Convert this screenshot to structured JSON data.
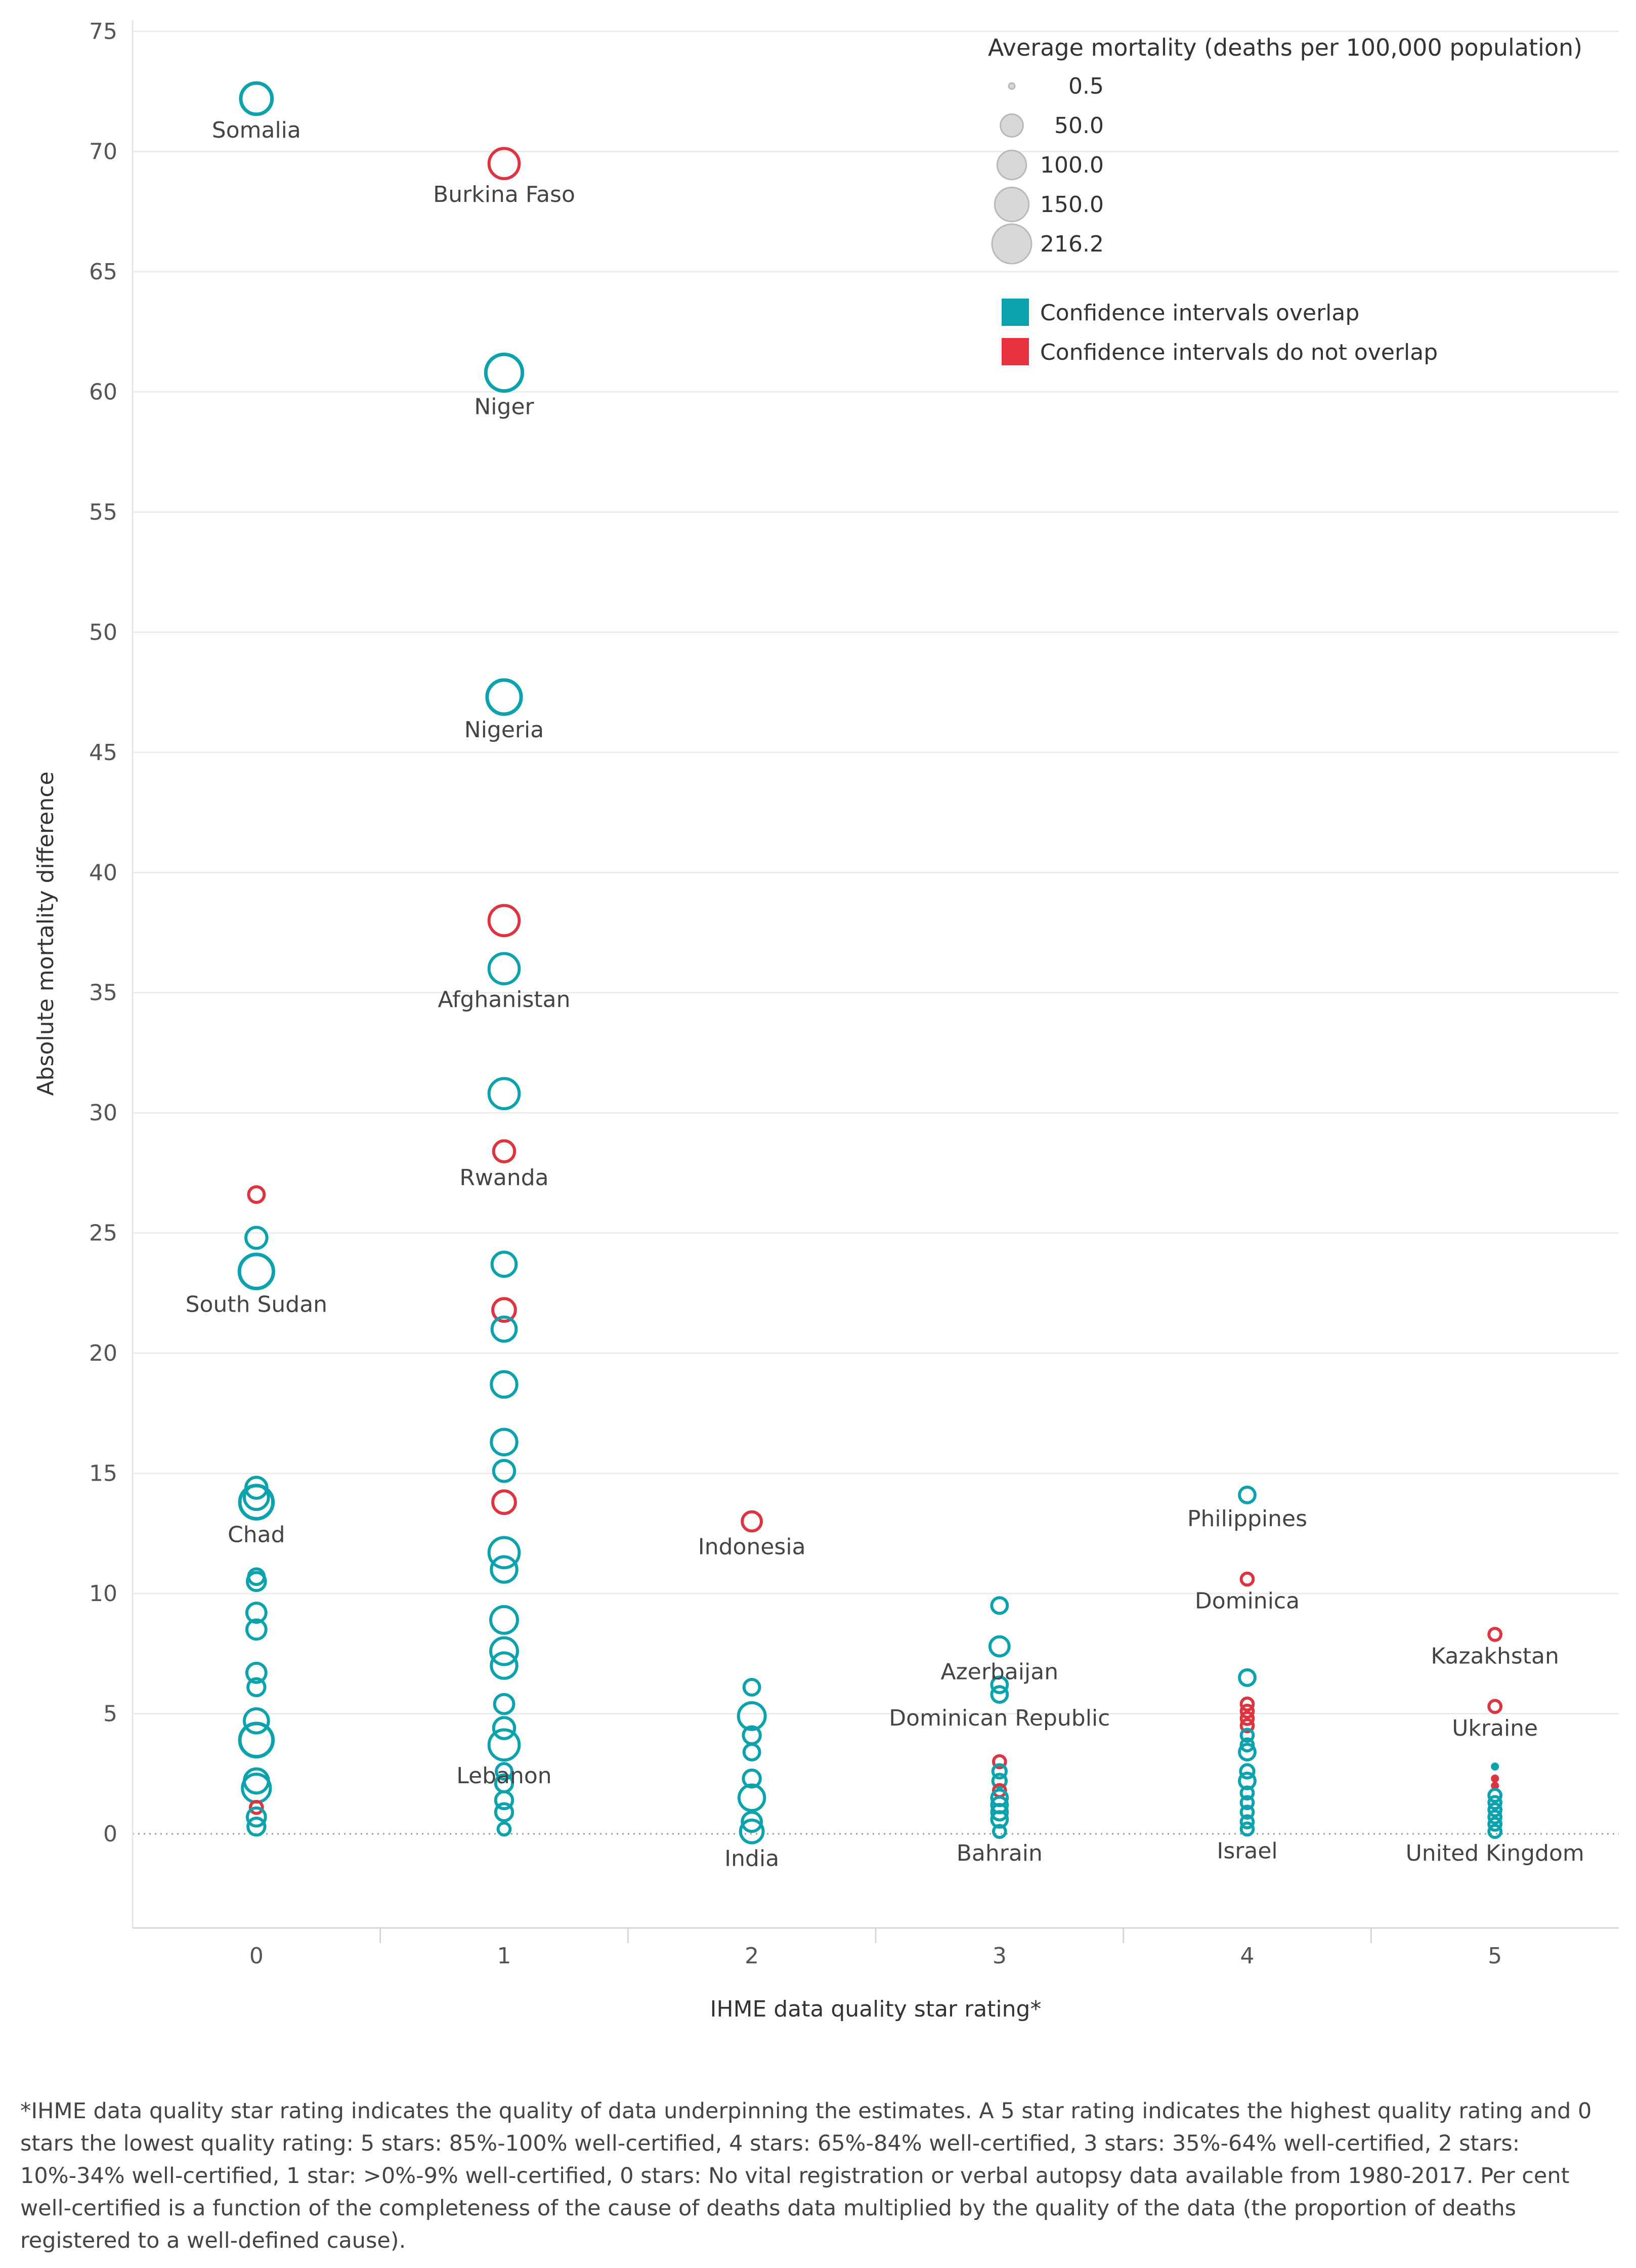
{
  "chart_data": {
    "type": "scatter",
    "title": "",
    "xlabel": "IHME data quality star rating*",
    "ylabel": "Absolute mortality difference",
    "x_categories": [
      "0",
      "1",
      "2",
      "3",
      "4",
      "5"
    ],
    "ylim": [
      -4,
      75
    ],
    "y_ticks": [
      "0",
      "5",
      "10",
      "15",
      "20",
      "25",
      "30",
      "35",
      "40",
      "45",
      "50",
      "55",
      "60",
      "65",
      "70",
      "75"
    ],
    "grid": true,
    "legend": {
      "size_title": "Average mortality (deaths per 100,000 population)",
      "size_entries": [
        {
          "label": "0.5",
          "value": 0.5
        },
        {
          "label": "50.0",
          "value": 50
        },
        {
          "label": "100.0",
          "value": 100
        },
        {
          "label": "150.0",
          "value": 150
        },
        {
          "label": "216.2",
          "value": 216.2
        }
      ],
      "color_entries": [
        {
          "label": "Confidence intervals overlap",
          "color": "#0aa3ad"
        },
        {
          "label": "Confidence intervals do not overlap",
          "color": "#e8303f"
        }
      ],
      "placement": "top-right"
    },
    "colors": {
      "overlap": "#0aa3ad",
      "no_overlap": "#e03340"
    },
    "points": [
      {
        "x": 0,
        "y": 72.2,
        "size": 120,
        "group": "overlap",
        "label": "Somalia"
      },
      {
        "x": 0,
        "y": 26.6,
        "size": 15,
        "group": "no_overlap"
      },
      {
        "x": 0,
        "y": 24.8,
        "size": 40,
        "group": "overlap"
      },
      {
        "x": 0,
        "y": 23.4,
        "size": 150,
        "group": "overlap",
        "label": "South Sudan"
      },
      {
        "x": 0,
        "y": 14.4,
        "size": 40,
        "group": "overlap"
      },
      {
        "x": 0,
        "y": 14.0,
        "size": 60,
        "group": "overlap"
      },
      {
        "x": 0,
        "y": 13.8,
        "size": 140,
        "group": "overlap",
        "label": "Chad"
      },
      {
        "x": 0,
        "y": 10.7,
        "size": 15,
        "group": "overlap"
      },
      {
        "x": 0,
        "y": 10.5,
        "size": 25,
        "group": "overlap"
      },
      {
        "x": 0,
        "y": 9.2,
        "size": 30,
        "group": "overlap"
      },
      {
        "x": 0,
        "y": 8.5,
        "size": 30,
        "group": "overlap"
      },
      {
        "x": 0,
        "y": 6.7,
        "size": 30,
        "group": "overlap"
      },
      {
        "x": 0,
        "y": 6.1,
        "size": 20,
        "group": "overlap"
      },
      {
        "x": 0,
        "y": 4.7,
        "size": 60,
        "group": "overlap"
      },
      {
        "x": 0,
        "y": 3.9,
        "size": 140,
        "group": "overlap"
      },
      {
        "x": 0,
        "y": 2.2,
        "size": 60,
        "group": "overlap"
      },
      {
        "x": 0,
        "y": 1.9,
        "size": 90,
        "group": "overlap"
      },
      {
        "x": 0,
        "y": 1.1,
        "size": 5,
        "group": "no_overlap"
      },
      {
        "x": 0,
        "y": 0.7,
        "size": 25,
        "group": "overlap"
      },
      {
        "x": 0,
        "y": 0.3,
        "size": 20,
        "group": "overlap"
      },
      {
        "x": 1,
        "y": 69.5,
        "size": 110,
        "group": "no_overlap",
        "label": "Burkina Faso"
      },
      {
        "x": 1,
        "y": 60.8,
        "size": 180,
        "group": "overlap",
        "label": "Niger"
      },
      {
        "x": 1,
        "y": 47.3,
        "size": 150,
        "group": "overlap",
        "label": "Nigeria"
      },
      {
        "x": 1,
        "y": 38.0,
        "size": 110,
        "group": "no_overlap"
      },
      {
        "x": 1,
        "y": 36.0,
        "size": 110,
        "group": "overlap",
        "label": "Afghanistan"
      },
      {
        "x": 1,
        "y": 30.8,
        "size": 110,
        "group": "overlap"
      },
      {
        "x": 1,
        "y": 28.4,
        "size": 40,
        "group": "no_overlap",
        "label": "Rwanda"
      },
      {
        "x": 1,
        "y": 23.7,
        "size": 60,
        "group": "overlap"
      },
      {
        "x": 1,
        "y": 21.8,
        "size": 50,
        "group": "no_overlap"
      },
      {
        "x": 1,
        "y": 21.0,
        "size": 60,
        "group": "overlap"
      },
      {
        "x": 1,
        "y": 18.7,
        "size": 70,
        "group": "overlap"
      },
      {
        "x": 1,
        "y": 16.3,
        "size": 70,
        "group": "overlap"
      },
      {
        "x": 1,
        "y": 15.1,
        "size": 40,
        "group": "overlap"
      },
      {
        "x": 1,
        "y": 13.8,
        "size": 50,
        "group": "no_overlap"
      },
      {
        "x": 1,
        "y": 11.7,
        "size": 110,
        "group": "overlap"
      },
      {
        "x": 1,
        "y": 11.0,
        "size": 70,
        "group": "overlap"
      },
      {
        "x": 1,
        "y": 8.9,
        "size": 80,
        "group": "overlap"
      },
      {
        "x": 1,
        "y": 7.6,
        "size": 80,
        "group": "overlap"
      },
      {
        "x": 1,
        "y": 7.0,
        "size": 70,
        "group": "overlap"
      },
      {
        "x": 1,
        "y": 5.4,
        "size": 30,
        "group": "overlap"
      },
      {
        "x": 1,
        "y": 4.4,
        "size": 40,
        "group": "overlap"
      },
      {
        "x": 1,
        "y": 3.7,
        "size": 110,
        "group": "overlap",
        "label": "Lebanon"
      },
      {
        "x": 1,
        "y": 2.6,
        "size": 15,
        "group": "overlap"
      },
      {
        "x": 1,
        "y": 2.1,
        "size": 20,
        "group": "overlap"
      },
      {
        "x": 1,
        "y": 1.4,
        "size": 20,
        "group": "overlap"
      },
      {
        "x": 1,
        "y": 0.9,
        "size": 20,
        "group": "overlap"
      },
      {
        "x": 1,
        "y": 0.2,
        "size": 5,
        "group": "overlap"
      },
      {
        "x": 2,
        "y": 13.0,
        "size": 30,
        "group": "no_overlap",
        "label": "Indonesia"
      },
      {
        "x": 2,
        "y": 6.1,
        "size": 15,
        "group": "overlap"
      },
      {
        "x": 2,
        "y": 4.9,
        "size": 80,
        "group": "overlap"
      },
      {
        "x": 2,
        "y": 4.1,
        "size": 20,
        "group": "overlap"
      },
      {
        "x": 2,
        "y": 3.4,
        "size": 15,
        "group": "overlap"
      },
      {
        "x": 2,
        "y": 2.3,
        "size": 20,
        "group": "overlap"
      },
      {
        "x": 2,
        "y": 1.5,
        "size": 70,
        "group": "overlap"
      },
      {
        "x": 2,
        "y": 0.5,
        "size": 30,
        "group": "overlap"
      },
      {
        "x": 2,
        "y": 0.1,
        "size": 50,
        "group": "overlap",
        "label": "India"
      },
      {
        "x": 3,
        "y": 9.5,
        "size": 15,
        "group": "overlap"
      },
      {
        "x": 3,
        "y": 7.8,
        "size": 30,
        "group": "overlap",
        "label": "Azerbaijan"
      },
      {
        "x": 3,
        "y": 6.2,
        "size": 15,
        "group": "overlap"
      },
      {
        "x": 3,
        "y": 5.8,
        "size": 15,
        "group": "overlap",
        "label": "Dominican Republic"
      },
      {
        "x": 3,
        "y": 3.0,
        "size": 5,
        "group": "no_overlap"
      },
      {
        "x": 3,
        "y": 2.6,
        "size": 8,
        "group": "overlap"
      },
      {
        "x": 3,
        "y": 2.2,
        "size": 8,
        "group": "overlap"
      },
      {
        "x": 3,
        "y": 1.8,
        "size": 5,
        "group": "no_overlap"
      },
      {
        "x": 3,
        "y": 1.5,
        "size": 15,
        "group": "overlap"
      },
      {
        "x": 3,
        "y": 1.2,
        "size": 15,
        "group": "overlap"
      },
      {
        "x": 3,
        "y": 0.9,
        "size": 15,
        "group": "overlap"
      },
      {
        "x": 3,
        "y": 0.6,
        "size": 15,
        "group": "overlap"
      },
      {
        "x": 3,
        "y": 0.1,
        "size": 5,
        "group": "overlap",
        "label": "Bahrain"
      },
      {
        "x": 4,
        "y": 14.1,
        "size": 15,
        "group": "overlap",
        "label": "Philippines"
      },
      {
        "x": 4,
        "y": 10.6,
        "size": 5,
        "group": "no_overlap",
        "label": "Dominica"
      },
      {
        "x": 4,
        "y": 6.5,
        "size": 15,
        "group": "overlap"
      },
      {
        "x": 4,
        "y": 5.4,
        "size": 5,
        "group": "no_overlap"
      },
      {
        "x": 4,
        "y": 5.1,
        "size": 5,
        "group": "no_overlap"
      },
      {
        "x": 4,
        "y": 4.8,
        "size": 5,
        "group": "no_overlap"
      },
      {
        "x": 4,
        "y": 4.5,
        "size": 5,
        "group": "no_overlap"
      },
      {
        "x": 4,
        "y": 4.1,
        "size": 5,
        "group": "overlap"
      },
      {
        "x": 4,
        "y": 3.7,
        "size": 5,
        "group": "overlap"
      },
      {
        "x": 4,
        "y": 3.4,
        "size": 15,
        "group": "overlap"
      },
      {
        "x": 4,
        "y": 2.6,
        "size": 8,
        "group": "overlap"
      },
      {
        "x": 4,
        "y": 2.2,
        "size": 15,
        "group": "overlap"
      },
      {
        "x": 4,
        "y": 1.7,
        "size": 5,
        "group": "overlap"
      },
      {
        "x": 4,
        "y": 1.3,
        "size": 5,
        "group": "overlap"
      },
      {
        "x": 4,
        "y": 0.9,
        "size": 5,
        "group": "overlap"
      },
      {
        "x": 4,
        "y": 0.5,
        "size": 5,
        "group": "overlap"
      },
      {
        "x": 4,
        "y": 0.2,
        "size": 5,
        "group": "overlap",
        "label": "Israel"
      },
      {
        "x": 5,
        "y": 8.3,
        "size": 5,
        "group": "no_overlap",
        "label": "Kazakhstan"
      },
      {
        "x": 5,
        "y": 5.3,
        "size": 5,
        "group": "no_overlap",
        "label": "Ukraine"
      },
      {
        "x": 5,
        "y": 2.8,
        "size": 3,
        "group": "overlap"
      },
      {
        "x": 5,
        "y": 2.3,
        "size": 3,
        "group": "no_overlap"
      },
      {
        "x": 5,
        "y": 2.0,
        "size": 3,
        "group": "no_overlap"
      },
      {
        "x": 5,
        "y": 1.6,
        "size": 5,
        "group": "overlap"
      },
      {
        "x": 5,
        "y": 1.3,
        "size": 5,
        "group": "overlap"
      },
      {
        "x": 5,
        "y": 1.0,
        "size": 5,
        "group": "overlap"
      },
      {
        "x": 5,
        "y": 0.7,
        "size": 5,
        "group": "overlap"
      },
      {
        "x": 5,
        "y": 0.4,
        "size": 5,
        "group": "overlap"
      },
      {
        "x": 5,
        "y": 0.1,
        "size": 5,
        "group": "overlap",
        "label": "United Kingdom"
      }
    ]
  },
  "footnote": "*IHME data quality star rating indicates the quality of data underpinning the estimates.  A 5 star rating indicates the highest quality rating and 0 stars the lowest quality rating: 5 stars: 85%-100% well-certified, 4 stars: 65%-84% well-certified, 3 stars: 35%-64% well-certified, 2 stars: 10%-34% well-certified, 1 star: >0%-9% well-certified, 0 stars: No vital registration or verbal autopsy data available from 1980-2017. Per cent well-certified is a function of the completeness of the cause of deaths data multiplied by the quality of the data (the proportion of deaths registered to a well-defined cause)."
}
